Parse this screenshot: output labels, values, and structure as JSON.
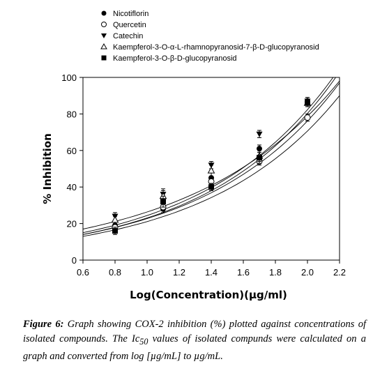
{
  "chart_data": {
    "type": "scatter",
    "xlabel": "Log(Concentration)(µg/ml)",
    "ylabel": "% Inhibition",
    "xlim": [
      0.6,
      2.2
    ],
    "ylim": [
      0,
      100
    ],
    "x_ticks": [
      "0.6",
      "0.8",
      "1.0",
      "1.2",
      "1.4",
      "1.6",
      "1.8",
      "2.0",
      "2.2"
    ],
    "y_ticks": [
      "0",
      "20",
      "40",
      "60",
      "80",
      "100"
    ],
    "x": [
      0.8,
      1.1,
      1.4,
      1.7,
      2.0
    ],
    "series": [
      {
        "name": "Nicotiflorin",
        "marker": "filled-circle",
        "values": [
          19,
          28,
          45,
          61,
          87
        ],
        "error": [
          2,
          2,
          3,
          2,
          2
        ],
        "fit": [
          0.6,
          14,
          2.2,
          97
        ]
      },
      {
        "name": "Quercetin",
        "marker": "open-circle",
        "values": [
          18,
          29,
          43,
          54,
          78
        ],
        "error": [
          2,
          2,
          2,
          2,
          2
        ],
        "fit": [
          0.6,
          13,
          2.2,
          90
        ]
      },
      {
        "name": "Catechin",
        "marker": "filled-triangle-down",
        "values": [
          24,
          36,
          52,
          69,
          87
        ],
        "error": [
          2,
          3,
          2,
          2,
          2
        ],
        "fit": [
          0.6,
          17,
          2.2,
          98
        ]
      },
      {
        "name": "Kaempferol-3-O-α-L-rhamnopyranosid-7-β-D-glucopyranosid",
        "marker": "open-triangle-up",
        "values": [
          22,
          35,
          49,
          57,
          86
        ],
        "error": [
          2,
          3,
          3,
          3,
          2
        ],
        "fit": [
          0.6,
          15,
          2.2,
          105
        ]
      },
      {
        "name": "Kaempferol-3-O-β-D-glucopyranosid",
        "marker": "filled-square",
        "values": [
          16,
          32,
          40,
          56,
          86
        ],
        "error": [
          2,
          3,
          2,
          3,
          2
        ],
        "fit": [
          0.6,
          14,
          2.2,
          103
        ]
      }
    ],
    "grid": false,
    "legend_position": "top"
  },
  "caption": {
    "label": "Figure 6:",
    "part1": "Graph showing COX-2 inhibition (%) plotted against concentrations of isolated compounds. The Ic",
    "subscript": "50",
    "part2": "values of isolated compunds were calculated on a graph and converted from log [µg/mL] to µg/mL."
  }
}
